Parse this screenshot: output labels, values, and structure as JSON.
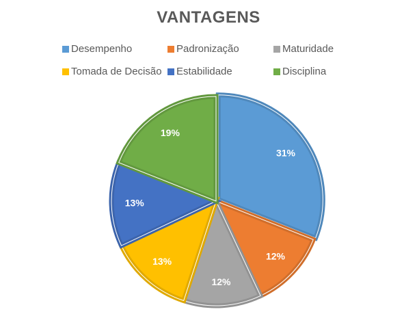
{
  "chart_data": {
    "type": "pie",
    "title": "VANTAGENS",
    "categories": [
      "Desempenho",
      "Padronização",
      "Maturidade",
      "Tomada de Decisão",
      "Estabilidade",
      "Disciplina"
    ],
    "values": [
      31,
      12,
      12,
      13,
      13,
      19
    ],
    "labels": [
      "31%",
      "12%",
      "12%",
      "13%",
      "13%",
      "19%"
    ],
    "colors": [
      "#5B9BD5",
      "#ED7D31",
      "#A5A5A5",
      "#FFC000",
      "#4472C4",
      "#70AD47"
    ],
    "border_colors": [
      "#4F88BB",
      "#D06E2B",
      "#929292",
      "#E0A900",
      "#3C64AC",
      "#62983E"
    ],
    "legend_position": "top",
    "start_angle_deg": 0,
    "direction": "clockwise"
  },
  "legend": [
    {
      "label": "Desempenho",
      "color": "#5B9BD5"
    },
    {
      "label": "Padronização",
      "color": "#ED7D31"
    },
    {
      "label": "Maturidade",
      "color": "#A5A5A5"
    },
    {
      "label": "Tomada de Decisão",
      "color": "#FFC000"
    },
    {
      "label": "Estabilidade",
      "color": "#4472C4"
    },
    {
      "label": "Disciplina",
      "color": "#70AD47"
    }
  ]
}
